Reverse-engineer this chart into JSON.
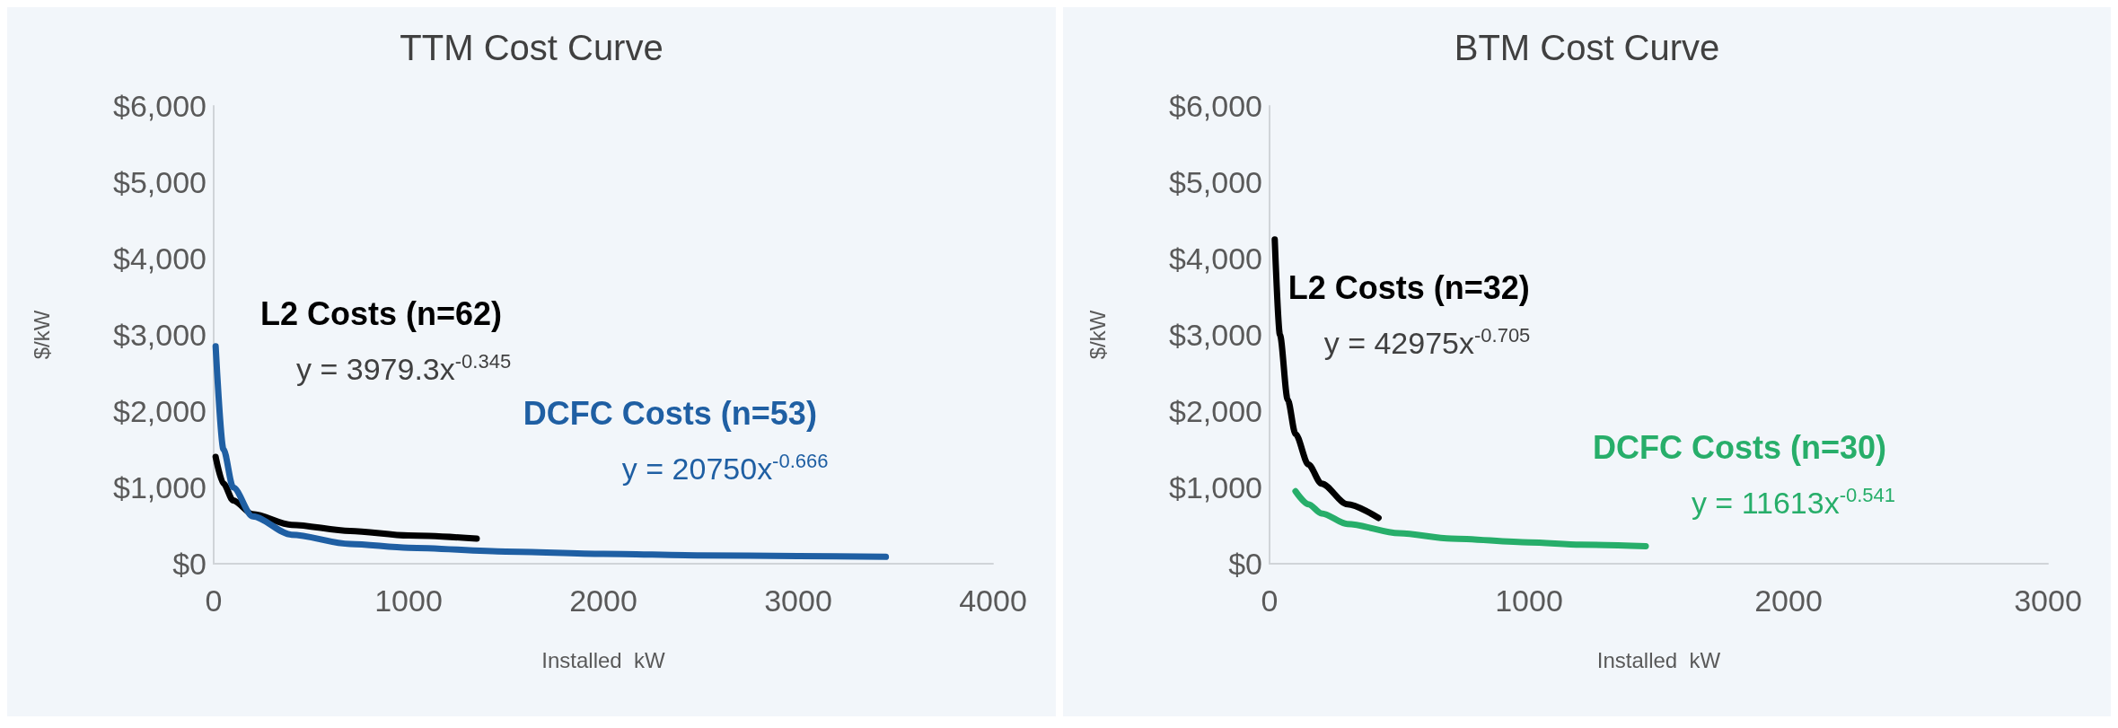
{
  "chart_data": [
    {
      "type": "line",
      "title": "TTM Cost Curve",
      "xlabel": "Installed  kW",
      "ylabel": "$/kW",
      "xlim": [
        0,
        4000
      ],
      "xticks": [
        0,
        1000,
        2000,
        3000,
        4000
      ],
      "ylim": [
        0,
        6000
      ],
      "yticks": [
        {
          "value": 0,
          "label": "$0"
        },
        {
          "value": 1000,
          "label": "$1,000"
        },
        {
          "value": 2000,
          "label": "$2,000"
        },
        {
          "value": 3000,
          "label": "$3,000"
        },
        {
          "value": 4000,
          "label": "$4,000"
        },
        {
          "value": 5000,
          "label": "$5,000"
        },
        {
          "value": 6000,
          "label": "$6,000"
        }
      ],
      "grid": false,
      "legend": false,
      "marker": "none",
      "series": [
        {
          "name": "L2 Costs (n=62)",
          "color": "#000000",
          "x": [
            10,
            50,
            100,
            200,
            400,
            700,
            1000,
            1350
          ],
          "values": [
            1400,
            1050,
            830,
            650,
            510,
            430,
            370,
            330
          ]
        },
        {
          "name": "DCFC Costs (n=53)",
          "color": "#1f5fa3",
          "x": [
            10,
            50,
            100,
            200,
            400,
            700,
            1000,
            1500,
            2000,
            2500,
            3000,
            3450
          ],
          "values": [
            2850,
            1500,
            1000,
            620,
            380,
            260,
            210,
            160,
            130,
            110,
            100,
            90
          ]
        }
      ],
      "annotations": [
        "y = 3979.3x$^{-0.345}$",
        "y = 20750x$^{-0.666}$"
      ]
    },
    {
      "type": "line",
      "title": "BTM Cost Curve",
      "xlabel": "Installed  kW",
      "ylabel": "$/kW",
      "xlim": [
        0,
        3000
      ],
      "xticks": [
        0,
        1000,
        2000,
        3000
      ],
      "ylim": [
        0,
        6000
      ],
      "yticks": [
        {
          "value": 0,
          "label": "$0"
        },
        {
          "value": 1000,
          "label": "$1,000"
        },
        {
          "value": 2000,
          "label": "$2,000"
        },
        {
          "value": 3000,
          "label": "$3,000"
        },
        {
          "value": 4000,
          "label": "$4,000"
        },
        {
          "value": 5000,
          "label": "$5,000"
        },
        {
          "value": 6000,
          "label": "$6,000"
        }
      ],
      "grid": false,
      "legend": false,
      "marker": "none",
      "series": [
        {
          "name": "L2 Costs (n=32)",
          "color": "#000000",
          "x": [
            20,
            40,
            70,
            100,
            150,
            200,
            300,
            420
          ],
          "values": [
            4250,
            3000,
            2150,
            1700,
            1300,
            1050,
            780,
            600
          ]
        },
        {
          "name": "DCFC Costs (n=30)",
          "color": "#27ae6a",
          "x": [
            100,
            150,
            200,
            300,
            500,
            700,
            1000,
            1200,
            1450
          ],
          "values": [
            950,
            780,
            660,
            520,
            400,
            330,
            280,
            250,
            230
          ]
        }
      ],
      "annotations": [
        "y = 42975x$^{-0.705}$",
        "y = 11613x$^{-0.541}$"
      ]
    }
  ]
}
